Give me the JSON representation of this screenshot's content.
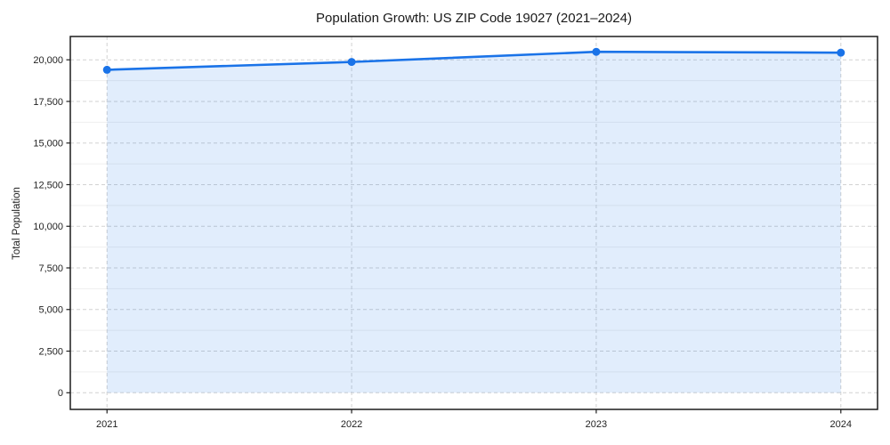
{
  "chart_data": {
    "type": "line",
    "title": "Population Growth: US ZIP Code 19027 (2021–2024)",
    "xlabel": "",
    "ylabel": "Total Population",
    "x": [
      2021,
      2022,
      2023,
      2024
    ],
    "series": [
      {
        "name": "Total Population",
        "values": [
          19400,
          19870,
          20480,
          20430
        ]
      }
    ],
    "yticks": [
      0,
      2500,
      5000,
      7500,
      10000,
      12500,
      15000,
      17500,
      20000
    ],
    "ylim": [
      -1000,
      21400
    ],
    "x_margin": 0.15,
    "y_major_step": 2500,
    "y_minor_step": 1250,
    "grid": "major dashed both axes, faint horizontal minors",
    "legend": "none",
    "area_fill_to_zero": true,
    "marker": "filled-circle",
    "colors": {
      "line": "#1a73e8",
      "fill": "rgba(26,115,232,0.13)",
      "grid_major": "#d2d2d2",
      "grid_minor": "#efefef",
      "spine": "#1c1c1c",
      "text": "#1f1f1f",
      "background": "#ffffff"
    }
  }
}
